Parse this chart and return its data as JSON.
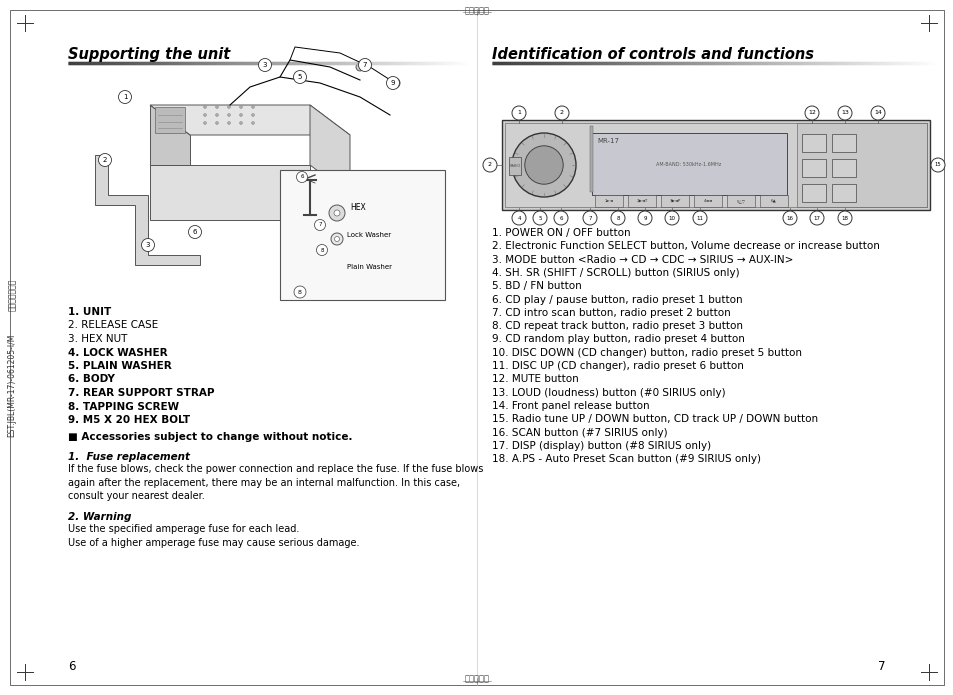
{
  "page_bg": "#ffffff",
  "left_title": "Supporting the unit",
  "right_title": "Identification of controls and functions",
  "left_parts_list": [
    {
      "text": "1. UNIT",
      "bold": true
    },
    {
      "text": "2. RELEASE CASE",
      "bold": false
    },
    {
      "text": "3. HEX NUT",
      "bold": false
    },
    {
      "text": "4. LOCK WASHER",
      "bold": true
    },
    {
      "text": "5. PLAIN WASHER",
      "bold": true
    },
    {
      "text": "6. BODY",
      "bold": true
    },
    {
      "text": "7. REAR SUPPORT STRAP",
      "bold": true
    },
    {
      "text": "8. TAPPING SCREW",
      "bold": true
    },
    {
      "text": "9. M5 X 20 HEX BOLT",
      "bold": true
    }
  ],
  "accessory_note": "■ Accessories subject to change without notice.",
  "fuse_title": "1.  Fuse replacement",
  "fuse_text": "If the fuse blows, check the power connection and replace the fuse. If the fuse blows\nagain after the replacement, there may be an internal malfunction. In this case,\nconsult your nearest dealer.",
  "warning_title": "2. Warning",
  "warning_text": "Use the specified amperage fuse for each lead.\nUse of a higher amperage fuse may cause serious damage.",
  "right_items": [
    "1. POWER ON / OFF button",
    "2. Electronic Function SELECT button, Volume decrease or increase button",
    "3. MODE button <Radio → CD → CDC → SIRIUS → AUX-IN>",
    "4. SH. SR (SHIFT / SCROLL) button (SIRIUS only)",
    "5. BD / FN button",
    "6. CD play / pause button, radio preset 1 button",
    "7. CD intro scan button, radio preset 2 button",
    "8. CD repeat track button, radio preset 3 button",
    "9. CD random play button, radio preset 4 button",
    "10. DISC DOWN (CD changer) button, radio preset 5 button",
    "11. DISC UP (CD changer), radio preset 6 button",
    "12. MUTE button",
    "13. LOUD (loudness) button (#0 SIRIUS only)",
    "14. Front panel release button",
    "15. Radio tune UP / DOWN button, CD track UP / DOWN button",
    "16. SCAN button (#7 SIRIUS only)",
    "17. DISP (display) button (#8 SIRIUS only)",
    "18. A.PS - Auto Preset Scan button (#9 SIRIUS only)"
  ],
  "page_number_left": "6",
  "page_number_right": "7",
  "top_center_text": "对折基准线",
  "bottom_center_text": "对折基准线",
  "left_side_text": "EST.JBL(MR-17)-061205-I/M",
  "left_side_text2": "非林管理编号："
}
